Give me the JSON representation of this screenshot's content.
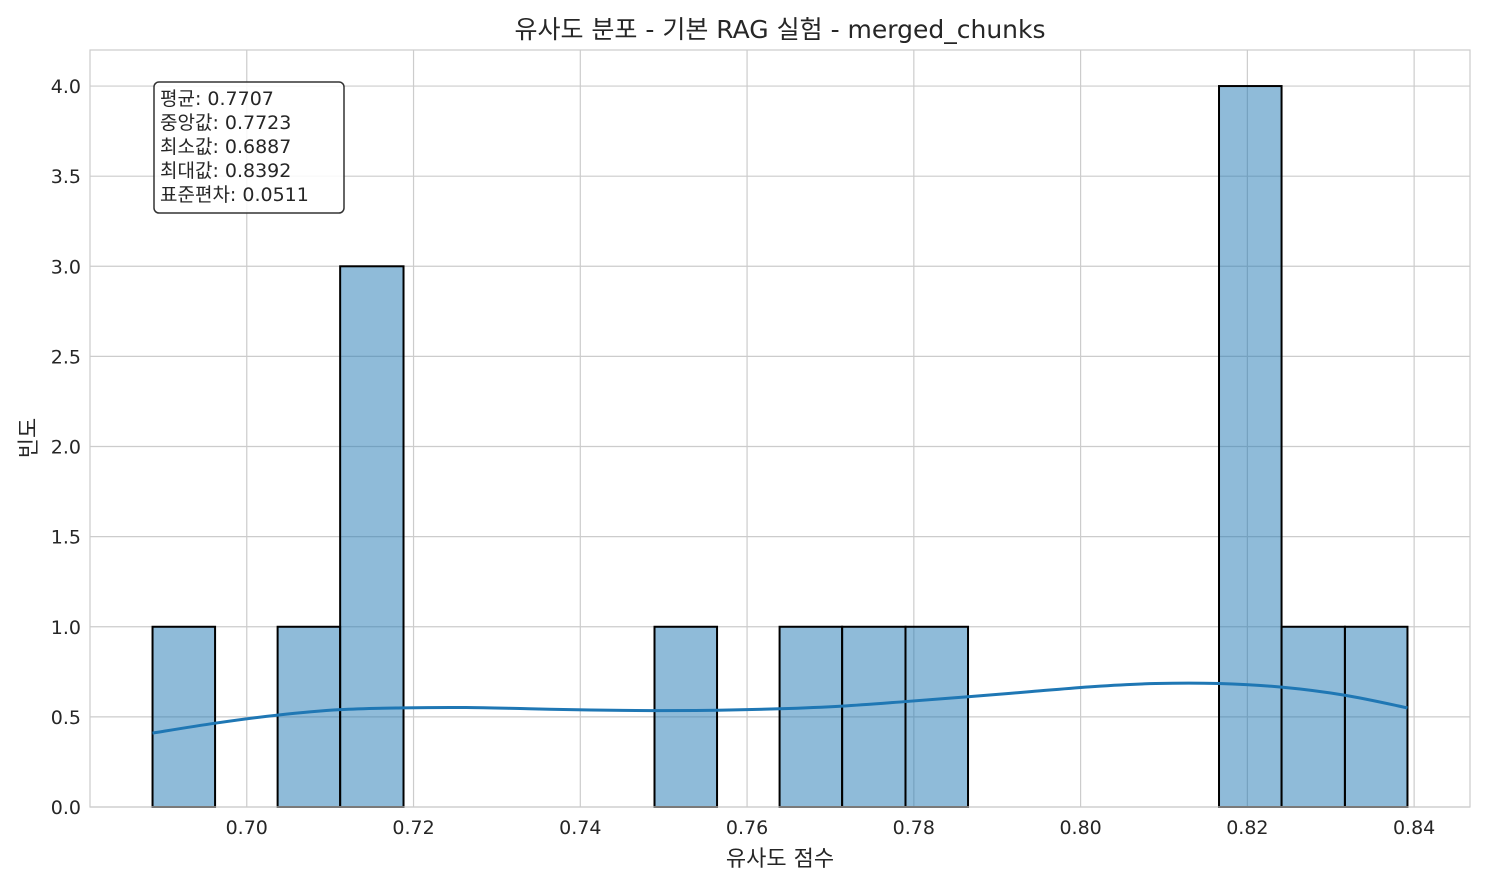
{
  "chart_data": {
    "type": "bar",
    "title": "유사도 분포 - 기본 RAG 실험 - merged_chunks",
    "xlabel": "유사도 점수",
    "ylabel": "빈도",
    "xlim": [
      0.6812,
      0.8467
    ],
    "ylim": [
      0,
      4.2
    ],
    "grid": true,
    "xticks": [
      "0.70",
      "0.72",
      "0.74",
      "0.76",
      "0.78",
      "0.80",
      "0.82",
      "0.84"
    ],
    "xtick_values": [
      0.7,
      0.72,
      0.74,
      0.76,
      0.78,
      0.8,
      0.82,
      0.84
    ],
    "yticks": [
      "0.0",
      "0.5",
      "1.0",
      "1.5",
      "2.0",
      "2.5",
      "3.0",
      "3.5",
      "4.0"
    ],
    "ytick_values": [
      0,
      0.5,
      1.0,
      1.5,
      2.0,
      2.5,
      3.0,
      3.5,
      4.0
    ],
    "bins": [
      {
        "x0": 0.6887,
        "x1": 0.6962,
        "count": 1
      },
      {
        "x0": 0.7037,
        "x1": 0.7112,
        "count": 1
      },
      {
        "x0": 0.7112,
        "x1": 0.7188,
        "count": 3
      },
      {
        "x0": 0.7489,
        "x1": 0.7564,
        "count": 1
      },
      {
        "x0": 0.7639,
        "x1": 0.7714,
        "count": 1
      },
      {
        "x0": 0.7714,
        "x1": 0.779,
        "count": 1
      },
      {
        "x0": 0.779,
        "x1": 0.7865,
        "count": 1
      },
      {
        "x0": 0.8166,
        "x1": 0.8241,
        "count": 4
      },
      {
        "x0": 0.8241,
        "x1": 0.8317,
        "count": 1
      },
      {
        "x0": 0.8317,
        "x1": 0.8392,
        "count": 1
      }
    ],
    "kde": {
      "x": [
        0.6887,
        0.6962,
        0.7037,
        0.7112,
        0.7188,
        0.7263,
        0.7338,
        0.7413,
        0.7489,
        0.7564,
        0.7639,
        0.7714,
        0.779,
        0.7865,
        0.794,
        0.8015,
        0.809,
        0.8166,
        0.8241,
        0.8317,
        0.8392
      ],
      "y": [
        0.41,
        0.465,
        0.51,
        0.54,
        0.55,
        0.552,
        0.545,
        0.538,
        0.535,
        0.537,
        0.545,
        0.56,
        0.585,
        0.612,
        0.64,
        0.668,
        0.685,
        0.685,
        0.665,
        0.62,
        0.55
      ]
    },
    "bar_color": "#1f77b4",
    "bar_fill_opacity": 0.5,
    "bar_edge_color": "#000000",
    "kde_color": "#1f77b4",
    "grid_color": "#cccccc",
    "stats_box": {
      "lines": [
        "평균: 0.7707",
        "중앙값: 0.7723",
        "최소값: 0.6887",
        "최대값: 0.8392",
        "표준편차: 0.0511"
      ]
    }
  }
}
